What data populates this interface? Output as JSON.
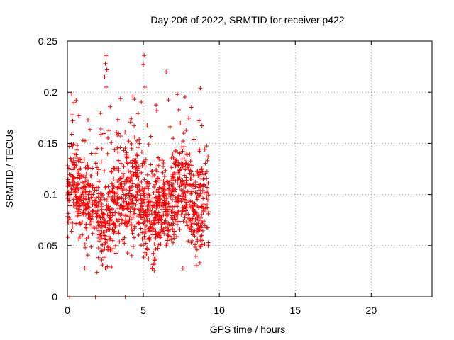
{
  "chart_data": {
    "type": "scatter",
    "title": "Day 206 of 2022, SRMTID for receiver p422",
    "xlabel": "GPS time / hours",
    "ylabel": "SRMTID / TECUs",
    "xlim": [
      0,
      24
    ],
    "ylim": [
      0,
      0.25
    ],
    "xticks": [
      0,
      5,
      10,
      15,
      20
    ],
    "yticks": [
      0,
      0.05,
      0.1,
      0.15,
      0.2,
      0.25
    ],
    "xtick_labels": [
      "0",
      "5",
      "10",
      "15",
      "20"
    ],
    "ytick_labels": [
      "0",
      "0.05",
      "0.1",
      "0.15",
      "0.2",
      "0.25"
    ],
    "grid": true,
    "marker": "+",
    "color": "#ff0000",
    "series": [
      {
        "name": "SRMTID",
        "x_range_hours": [
          0,
          9.3
        ],
        "approx_point_count": 1400,
        "typical_range": [
          0.04,
          0.16
        ],
        "notes": "dense cloud of points; main density 0.05-0.13 TECU",
        "highlights": [
          {
            "x": 2.55,
            "y": 0.236
          },
          {
            "x": 2.5,
            "y": 0.228
          },
          {
            "x": 2.6,
            "y": 0.222
          },
          {
            "x": 2.45,
            "y": 0.215
          },
          {
            "x": 2.55,
            "y": 0.205
          },
          {
            "x": 5.05,
            "y": 0.236
          },
          {
            "x": 5.0,
            "y": 0.227
          },
          {
            "x": 5.1,
            "y": 0.205
          },
          {
            "x": 6.5,
            "y": 0.22
          },
          {
            "x": 8.75,
            "y": 0.204
          },
          {
            "x": 0.35,
            "y": 0.172
          },
          {
            "x": 1.35,
            "y": 0.173
          },
          {
            "x": 0.15,
            "y": 0.0
          },
          {
            "x": 1.85,
            "y": 0.0
          },
          {
            "x": 3.8,
            "y": 0.0
          },
          {
            "x": 1.15,
            "y": 0.028
          },
          {
            "x": 1.95,
            "y": 0.024
          },
          {
            "x": 7.6,
            "y": 0.028
          }
        ]
      }
    ]
  }
}
